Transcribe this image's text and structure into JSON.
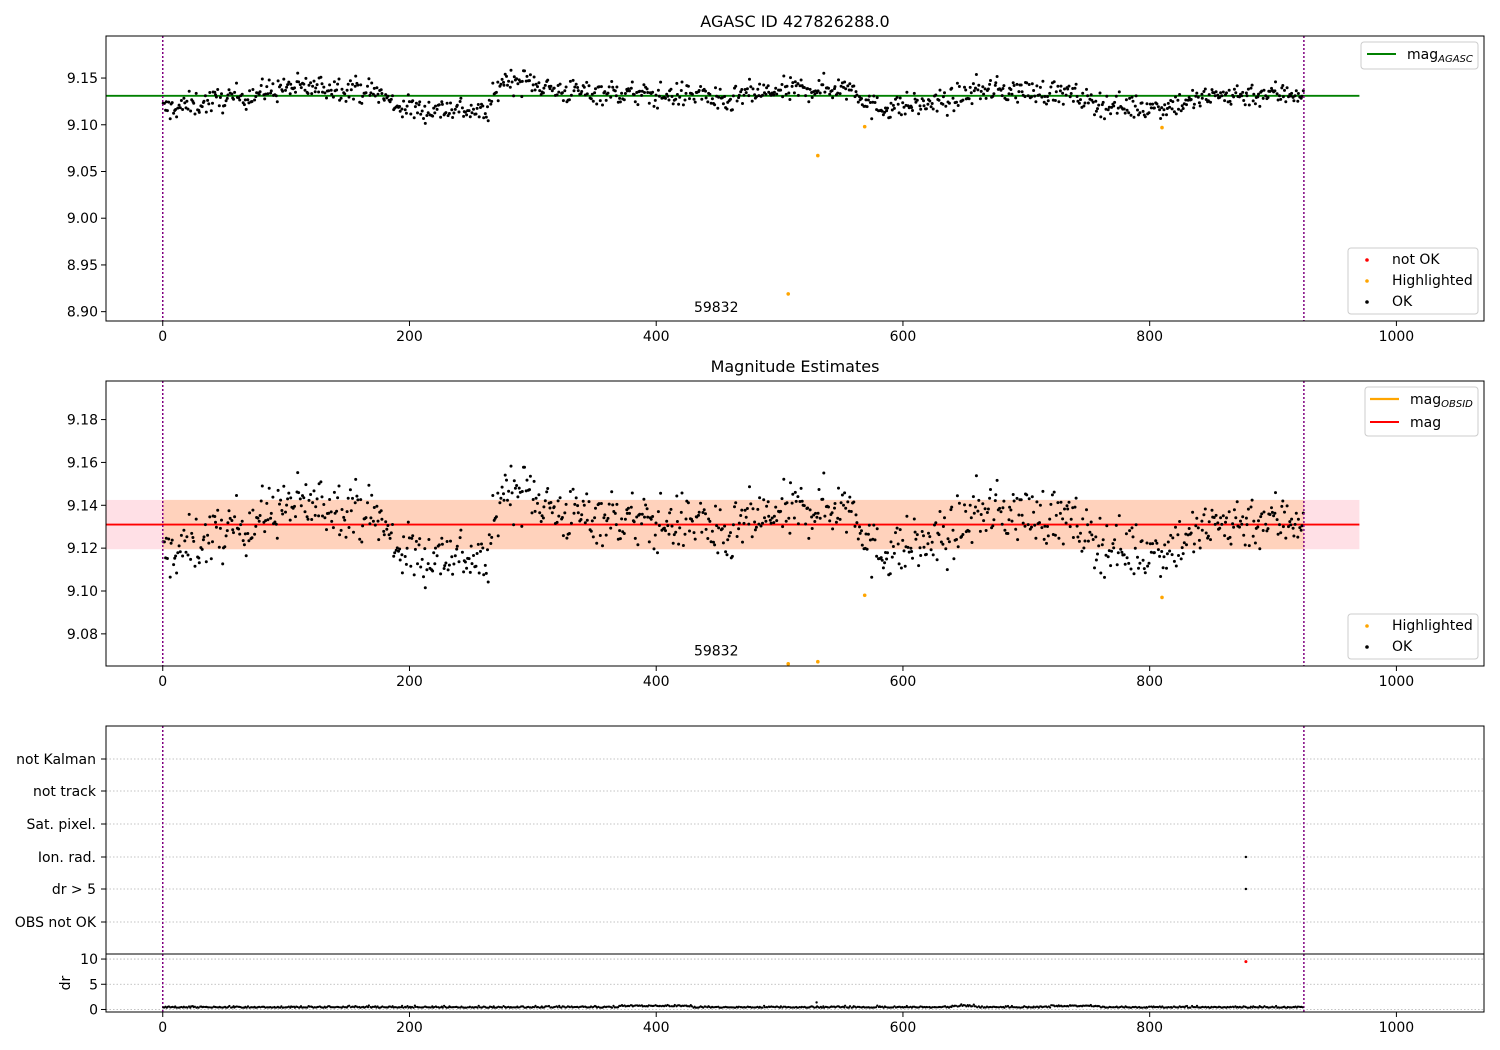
{
  "chart_data": [
    {
      "type": "scatter",
      "title": "AGASC ID 427826288.0",
      "xlim": [
        -46,
        1071
      ],
      "ylim": [
        8.89,
        9.195
      ],
      "x_ticks": [
        0,
        200,
        400,
        600,
        800,
        1000
      ],
      "y_ticks": [
        8.9,
        8.95,
        9.0,
        9.05,
        9.1,
        9.15
      ],
      "hline": {
        "label_main": "mag",
        "label_sub": "AGASC",
        "value": 9.131,
        "color": "#008000",
        "x_range": [
          -46,
          970
        ]
      },
      "vlines": [
        0,
        925
      ],
      "annotation": {
        "text": "59832",
        "x": 460,
        "y": 8.905
      },
      "series": [
        {
          "name": "not OK",
          "color": "#ff0000",
          "points": []
        },
        {
          "name": "Highlighted",
          "color": "#ffa500",
          "points": [
            [
              507,
              8.919
            ],
            [
              531,
              9.067
            ],
            [
              569,
              9.098
            ],
            [
              810,
              9.097
            ]
          ]
        },
        {
          "name": "OK",
          "color": "#000000",
          "generated_points": 1000
        }
      ],
      "legends": [
        {
          "position": "top-right",
          "entries": [
            "mag_AGASC"
          ]
        },
        {
          "position": "bottom-right",
          "entries": [
            "not OK",
            "Highlighted",
            "OK"
          ]
        }
      ]
    },
    {
      "type": "scatter",
      "title": "Magnitude Estimates",
      "xlim": [
        -46,
        1071
      ],
      "ylim": [
        9.065,
        9.198
      ],
      "x_ticks": [
        0,
        200,
        400,
        600,
        800,
        1000
      ],
      "y_ticks": [
        9.08,
        9.1,
        9.12,
        9.14,
        9.16,
        9.18
      ],
      "band": {
        "y_low": 9.1195,
        "y_high": 9.1425,
        "x_range": [
          -46,
          970
        ],
        "outer_color": "#ffe0e6",
        "inner_color": "#ffd2bc",
        "inner_x_range": [
          0,
          925
        ]
      },
      "hlines": [
        {
          "label_main": "mag",
          "label_sub": "OBSID",
          "color": "#ffa500"
        },
        {
          "label_main": "mag",
          "label_sub": "",
          "value": 9.131,
          "color": "#ff0000",
          "x_range": [
            -46,
            970
          ]
        }
      ],
      "vlines": [
        0,
        925
      ],
      "annotation": {
        "text": "59832",
        "x": 460,
        "y": 9.068
      },
      "series": [
        {
          "name": "Highlighted",
          "color": "#ffa500",
          "points": [
            [
              507,
              9.066
            ],
            [
              531,
              9.067
            ],
            [
              569,
              9.098
            ],
            [
              810,
              9.097
            ]
          ]
        },
        {
          "name": "OK",
          "color": "#000000",
          "generated_points": 1000
        }
      ],
      "legends": [
        {
          "position": "top-right",
          "entries": [
            "mag_OBSID",
            "mag"
          ]
        },
        {
          "position": "bottom-right",
          "entries": [
            "Highlighted",
            "OK"
          ]
        }
      ]
    },
    {
      "type": "scatter",
      "title": "",
      "xlim": [
        -46,
        1071
      ],
      "categories": [
        "not Kalman",
        "not track",
        "Sat. pixel.",
        "Ion. rad.",
        "dr > 5",
        "OBS not OK"
      ],
      "vlines": [
        0,
        925
      ],
      "flag_points": [
        {
          "category": "Ion. rad.",
          "x": 878
        },
        {
          "category": "dr > 5",
          "x": 878
        }
      ]
    },
    {
      "type": "scatter",
      "title": "",
      "ylabel": "dr",
      "xlim": [
        -46,
        1071
      ],
      "x_ticks": [
        0,
        200,
        400,
        600,
        800,
        1000
      ],
      "ylim": [
        -0.5,
        11
      ],
      "y_ticks": [
        0,
        5,
        10
      ],
      "vlines": [
        0,
        925
      ],
      "outlier": {
        "x": 878,
        "y": 9.5,
        "color": "#ff0000"
      },
      "generated_points": 925
    }
  ]
}
